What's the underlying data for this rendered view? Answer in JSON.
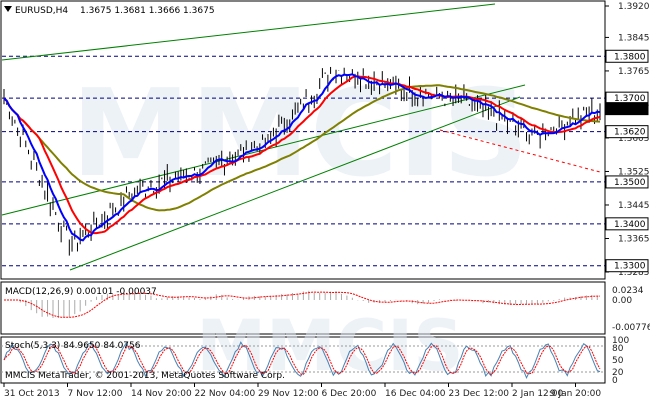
{
  "header": {
    "symbol_label": "EURUSD,H4",
    "ohlc": "1.3675 1.3681 1.3666 1.3675",
    "dropdown_icon": "triangle-down-icon"
  },
  "watermark": {
    "text": "MMCIS",
    "copyright": "MMCIS MetaTrader, © 2001-2013, MetaQuotes Software Corp."
  },
  "price_axis": {
    "ticks": [
      "1.3920",
      "1.3845",
      "1.3765",
      "1.3685",
      "1.3605",
      "1.3525",
      "1.3445",
      "1.3365",
      "1.3285"
    ],
    "levels": [
      "1.3800",
      "1.3700",
      "1.3675",
      "1.3620",
      "1.3500",
      "1.3400",
      "1.3300"
    ]
  },
  "macd": {
    "label": "MACD(12,26,9) 0.00101 -0.00037",
    "ticks": [
      "0.0234",
      "0.00",
      "-0.00776"
    ]
  },
  "stoch": {
    "label": "Stoch(5,3,3) 84.9650 84.0756",
    "ticks": [
      "100",
      "80",
      "50",
      "20",
      "0"
    ]
  },
  "time_axis": {
    "ticks": [
      "31 Oct 2013",
      "7 Nov 12:00",
      "14 Nov 20:00",
      "22 Nov 04:00",
      "29 Nov 12:00",
      "6 Dec 20:00",
      "16 Dec 04:00",
      "23 Dec 12:00",
      "2 Jan 12:00",
      "9 Jan 20:00"
    ]
  },
  "colors": {
    "price_bars": "#000000",
    "ma_fast": "#0000ff",
    "ma_medium": "#ff0000",
    "ma_slow": "#808000",
    "channel": "#008000",
    "level_lines": "#000080",
    "macd": "#ff0000",
    "stoch_main": "#4682b4",
    "stoch_signal": "#ff0000",
    "watermark": "#e1ebf4"
  },
  "chart_data": {
    "type": "candlestick",
    "symbol": "EURUSD",
    "timeframe": "H4",
    "approx_close_path": [
      {
        "t": "31 Oct 2013",
        "price": 1.37
      },
      {
        "t": "7 Nov 12:00",
        "price": 1.335
      },
      {
        "t": "14 Nov 20:00",
        "price": 1.348
      },
      {
        "t": "22 Nov 04:00",
        "price": 1.353
      },
      {
        "t": "29 Nov 12:00",
        "price": 1.36
      },
      {
        "t": "6 Dec 20:00",
        "price": 1.377
      },
      {
        "t": "16 Dec 04:00",
        "price": 1.372
      },
      {
        "t": "23 Dec 12:00",
        "price": 1.369
      },
      {
        "t": "2 Jan 12:00",
        "price": 1.361
      },
      {
        "t": "9 Jan 20:00",
        "price": 1.3675
      }
    ],
    "horizontal_levels": [
      1.38,
      1.37,
      1.362,
      1.35,
      1.34,
      1.33
    ],
    "current_price": 1.3675,
    "ylim": [
      1.3285,
      1.392
    ]
  }
}
